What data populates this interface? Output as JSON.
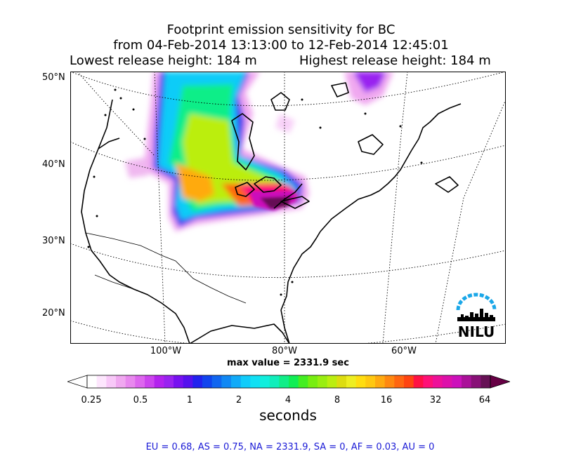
{
  "title": {
    "line1": "Footprint emission sensitivity for BC",
    "line2": "from 04-Feb-2014 13:13:00 to 12-Feb-2014 12:45:01",
    "lowest": "Lowest release height: 184 m",
    "highest": "Highest release height: 184 m"
  },
  "map": {
    "lat_labels": [
      "50°N",
      "40°N",
      "30°N",
      "20°N"
    ],
    "lon_labels": [
      "100°W",
      "80°W",
      "60°W"
    ],
    "max_value_text": "max value = 2331.9 sec"
  },
  "colorbar": {
    "tick_labels": [
      "0.25",
      "0.5",
      "1",
      "2",
      "4",
      "8",
      "16",
      "32",
      "64"
    ],
    "label": "seconds",
    "colors": [
      "#ffffff",
      "#fde6fd",
      "#f8c8f8",
      "#f0a8f0",
      "#e888ee",
      "#dd66ee",
      "#cc44ee",
      "#b322ee",
      "#9922f0",
      "#7711f0",
      "#5511ee",
      "#2222ee",
      "#1144ee",
      "#1166f0",
      "#1188f4",
      "#11aaf8",
      "#11ccfa",
      "#11e0f4",
      "#11eedd",
      "#11eebb",
      "#11ee88",
      "#11ee55",
      "#44ee22",
      "#77ee11",
      "#99ee11",
      "#bbee11",
      "#dddd11",
      "#eeee22",
      "#ffdd11",
      "#ffc811",
      "#ffaa11",
      "#ff8811",
      "#ff6611",
      "#ff4411",
      "#ff1144",
      "#ff1177",
      "#ee1199",
      "#dd11aa",
      "#cc11bb",
      "#aa1199",
      "#881177",
      "#661155"
    ],
    "under_color": "#ffffff",
    "over_color": "#660044"
  },
  "footer": "EU = 0.68,  AS = 0.75,  NA = 2331.9,  SA = 0,  AF = 0.03,  AU = 0",
  "logo": {
    "text": "NILU",
    "arc_color": "#1aa7e8"
  }
}
